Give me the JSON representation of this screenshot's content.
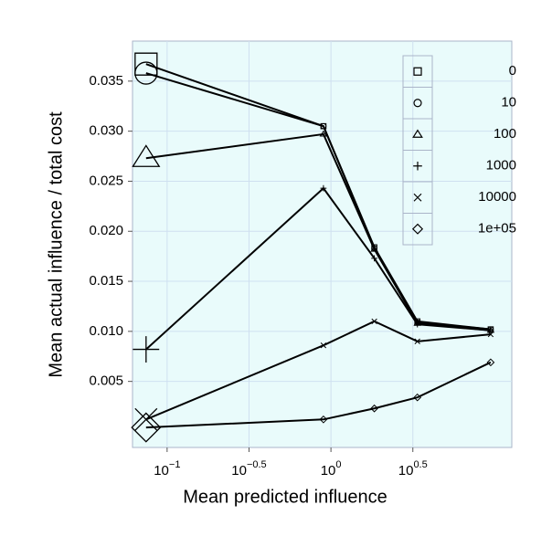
{
  "chart_data": {
    "type": "line",
    "x_label": "Mean predicted influence",
    "y_label": "Mean actual influence / total cost",
    "x": [
      0.0744,
      0.9,
      1.84,
      3.37,
      9.44
    ],
    "xscale": "log",
    "xlim": [
      0.0615,
      12.7
    ],
    "ylim": [
      -0.0016,
      0.039
    ],
    "xticks": [
      {
        "value": 0.1,
        "label": "10^-1"
      },
      {
        "value": 0.3162,
        "label": "10^-0.5"
      },
      {
        "value": 1,
        "label": "10^0"
      },
      {
        "value": 3.162,
        "label": "10^0.5"
      }
    ],
    "yticks": [
      0.005,
      {
        "value": 0.01,
        "label": "0.010"
      },
      0.015,
      {
        "value": 0.02,
        "label": "0.020"
      },
      0.025,
      {
        "value": 0.03,
        "label": "0.030"
      },
      0.035
    ],
    "grid": true,
    "legend": "top-right",
    "series": [
      {
        "name": "0",
        "symbol": "square",
        "color": "#000000",
        "values": [
          0.0367,
          0.0305,
          0.0184,
          0.011,
          0.0102
        ]
      },
      {
        "name": "10",
        "symbol": "circle",
        "color": "#000000",
        "values": [
          0.0358,
          0.0305,
          0.0183,
          0.0109,
          0.0102
        ]
      },
      {
        "name": "100",
        "symbol": "triangle",
        "color": "#000000",
        "values": [
          0.0273,
          0.0297,
          0.0182,
          0.0108,
          0.0101
        ]
      },
      {
        "name": "1000",
        "symbol": "plus",
        "color": "#000000",
        "values": [
          0.0082,
          0.0243,
          0.0173,
          0.0107,
          0.0101
        ]
      },
      {
        "name": "10000",
        "symbol": "cross",
        "color": "#000000",
        "values": [
          0.0012,
          0.0086,
          0.011,
          0.009,
          0.0097
        ]
      },
      {
        "name": "1e+05",
        "symbol": "diamond",
        "color": "#000000",
        "values": [
          0.0004,
          0.0012,
          0.0023,
          0.0034,
          0.0069
        ]
      }
    ]
  }
}
